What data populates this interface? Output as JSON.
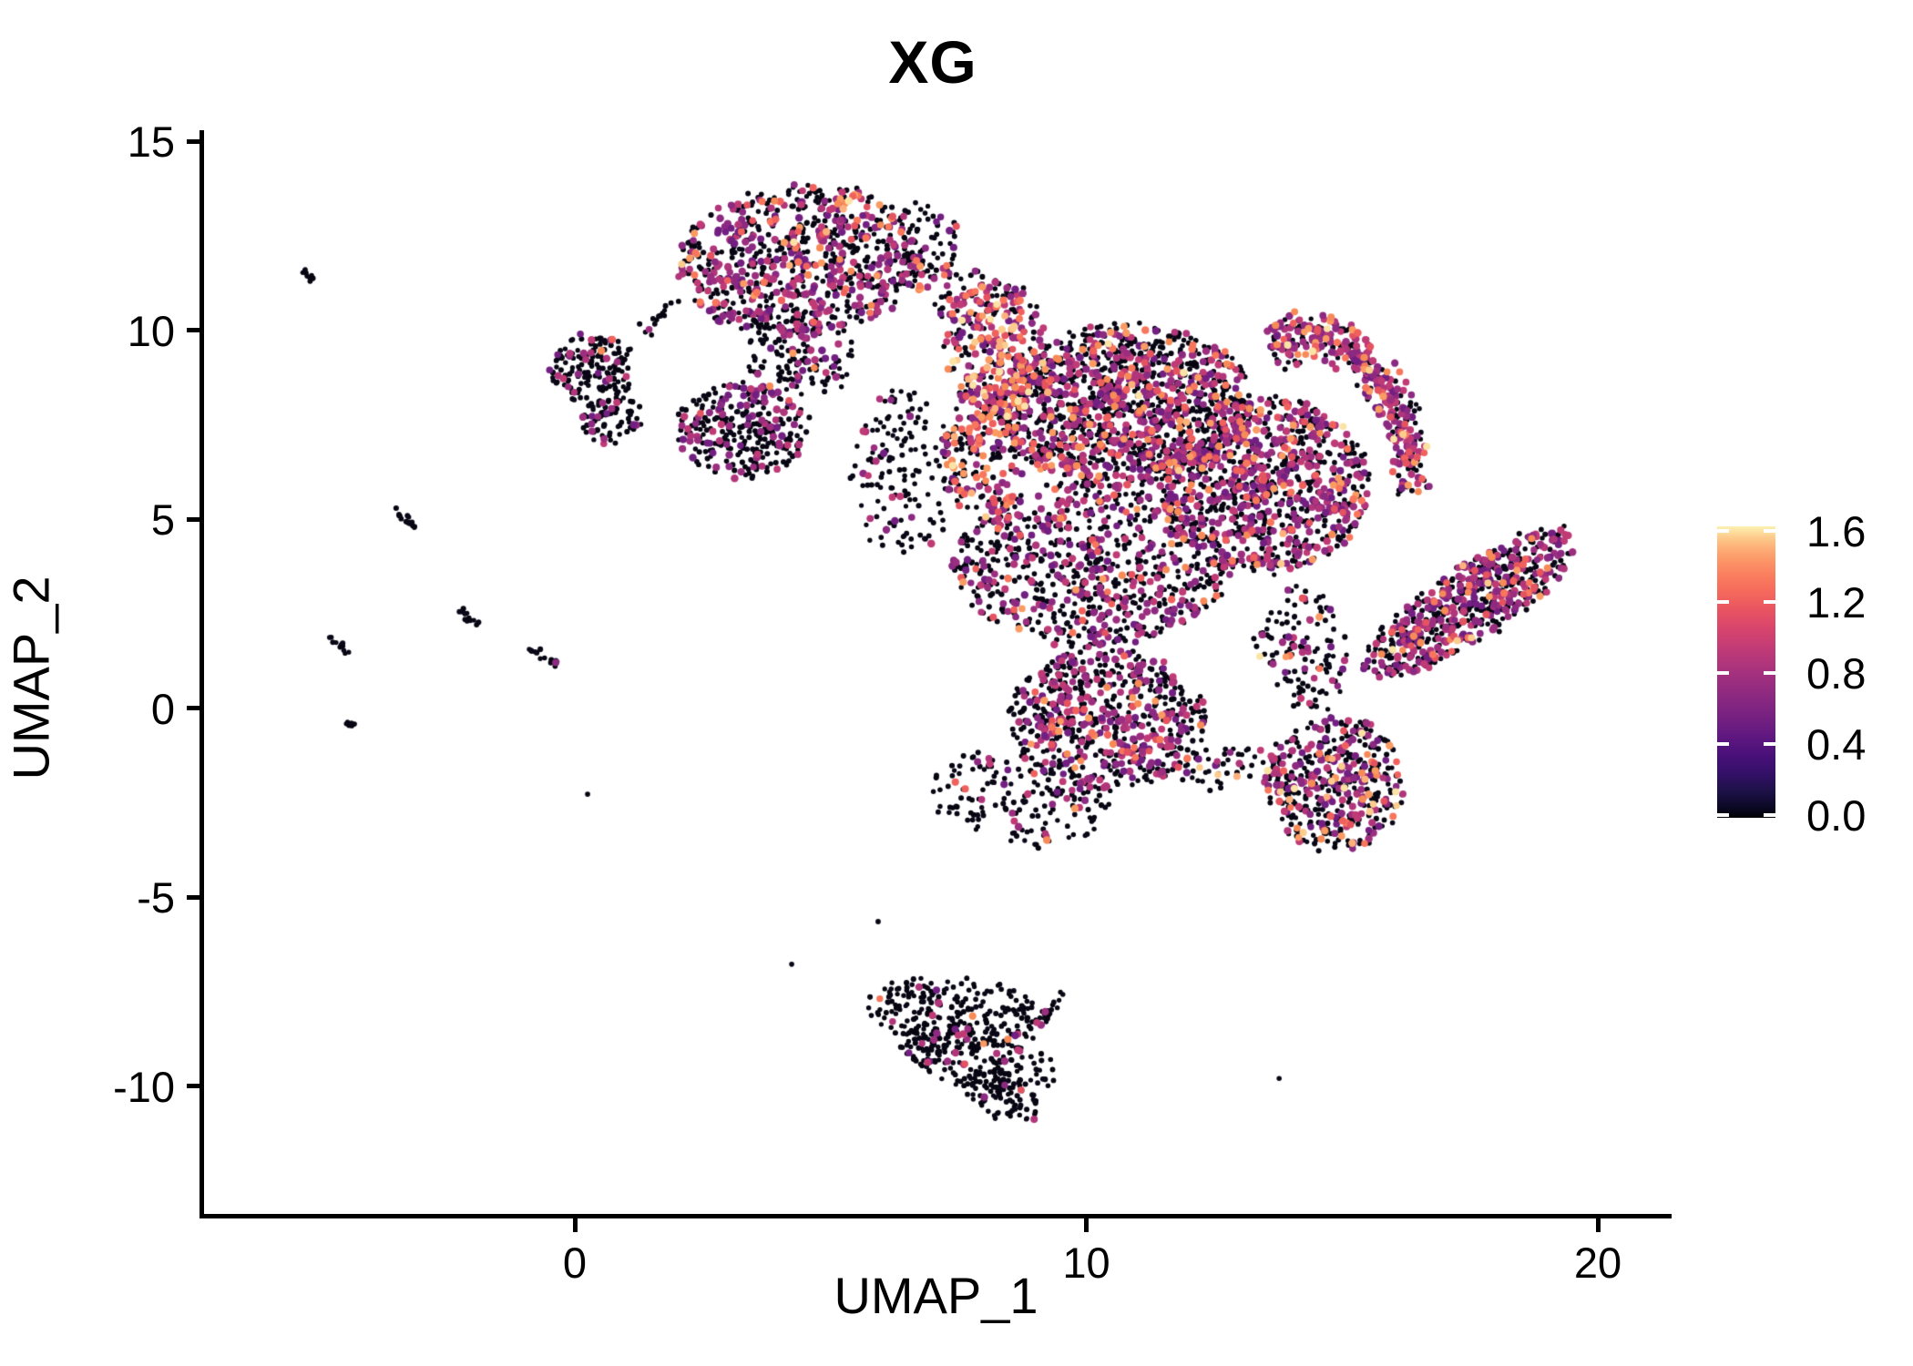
{
  "title": "XG",
  "axes": {
    "x_label": "UMAP_1",
    "y_label": "UMAP_2",
    "x_ticks": [
      0,
      10,
      20
    ],
    "y_ticks": [
      15,
      10,
      5,
      0,
      -5,
      -10
    ],
    "x_range": [
      -7.3,
      21.4
    ],
    "y_range": [
      -13.4,
      15.3
    ]
  },
  "legend": {
    "ticks": [
      {
        "value": 1.6,
        "label": "1.6"
      },
      {
        "value": 1.2,
        "label": "1.2"
      },
      {
        "value": 0.8,
        "label": "0.8"
      },
      {
        "value": 0.4,
        "label": "0.4"
      },
      {
        "value": 0.0,
        "label": "0.0"
      }
    ],
    "min": 0.0,
    "max": 1.66,
    "gradient": [
      [
        0,
        "#000004"
      ],
      [
        4,
        "#0c0927"
      ],
      [
        9,
        "#1d1147"
      ],
      [
        15,
        "#331067"
      ],
      [
        21,
        "#471078"
      ],
      [
        27,
        "#5c177f"
      ],
      [
        33,
        "#711f81"
      ],
      [
        40,
        "#872781"
      ],
      [
        47,
        "#9c2e7f"
      ],
      [
        53,
        "#b0357b"
      ],
      [
        59,
        "#c43c75"
      ],
      [
        65,
        "#d8456c"
      ],
      [
        71,
        "#e85362"
      ],
      [
        77,
        "#f4675c"
      ],
      [
        83,
        "#fa7d5e"
      ],
      [
        88,
        "#fc9467"
      ],
      [
        92,
        "#fdab74"
      ],
      [
        96,
        "#fdc98b"
      ],
      [
        100,
        "#fcf1b2"
      ]
    ]
  },
  "point_colors": {
    "black": [
      "#060510",
      "#0a0716"
    ],
    "purple": [
      "#721f81",
      "#8c2981",
      "#9c2e7f",
      "#b0357b",
      "#c03a76"
    ],
    "orange": [
      "#e4535f",
      "#f0615d",
      "#f8765c",
      "#f78b58",
      "#fa9b63"
    ],
    "cream": [
      "#fdb27d",
      "#fccc8f",
      "#fbe3a6"
    ]
  },
  "chart_data": {
    "type": "scatter",
    "title": "XG",
    "xlabel": "UMAP_1",
    "ylabel": "UMAP_2",
    "xlim": [
      -7.3,
      21.4
    ],
    "ylim": [
      -13.4,
      15.3
    ],
    "expression_scale": {
      "min": 0.0,
      "max": 1.66,
      "colormap": "magma"
    },
    "clusters": [
      {
        "id": "top-north-blob",
        "kind": "blob",
        "cx": 4.43,
        "cy": 11.85,
        "rx": 2.42,
        "ry": 1.95,
        "rot": -4,
        "n": 850,
        "mix": {
          "k": 0.6,
          "p": 0.33,
          "o": 0.062,
          "c": 0.008
        }
      },
      {
        "id": "top-north-tail",
        "kind": "blob",
        "cx": 4.4,
        "cy": 9.35,
        "rx": 1.1,
        "ry": 1.1,
        "rot": 0,
        "n": 130,
        "mix": {
          "k": 0.74,
          "p": 0.24,
          "o": 0.02,
          "c": 0
        }
      },
      {
        "id": "top-right-fringe",
        "kind": "blob",
        "cx": 6.9,
        "cy": 12.4,
        "rx": 0.62,
        "ry": 1.0,
        "rot": 0,
        "n": 45,
        "mix": {
          "k": 0.82,
          "p": 0.16,
          "o": 0.02,
          "c": 0
        }
      },
      {
        "id": "trail-a-to-b",
        "kind": "line",
        "x1": 2.03,
        "y1": 10.78,
        "x2": 1.23,
        "y2": 9.94,
        "w": 8,
        "n": 14,
        "mix": {
          "k": 0.85,
          "p": 0.15,
          "o": 0,
          "c": 0
        }
      },
      {
        "id": "left-small-blob",
        "kind": "blob",
        "cx": 0.34,
        "cy": 8.98,
        "rx": 0.82,
        "ry": 0.95,
        "rot": 0,
        "n": 165,
        "mix": {
          "k": 0.84,
          "p": 0.15,
          "o": 0.01,
          "c": 0
        }
      },
      {
        "id": "left-small-hook",
        "kind": "blob",
        "cx": 0.73,
        "cy": 7.6,
        "rx": 0.6,
        "ry": 0.55,
        "rot": -20,
        "n": 70,
        "mix": {
          "k": 0.8,
          "p": 0.17,
          "o": 0.03,
          "c": 0
        }
      },
      {
        "id": "mid-left-blob",
        "kind": "blob",
        "cx": 3.28,
        "cy": 7.36,
        "rx": 1.32,
        "ry": 1.28,
        "rot": 0,
        "n": 300,
        "mix": {
          "k": 0.72,
          "p": 0.26,
          "o": 0.02,
          "c": 0
        }
      },
      {
        "id": "bridge-sparse",
        "kind": "blob",
        "cx": 7.6,
        "cy": 10.9,
        "rx": 1.05,
        "ry": 0.85,
        "rot": 15,
        "n": 70,
        "mix": {
          "k": 0.62,
          "p": 0.24,
          "o": 0.12,
          "c": 0.02
        }
      },
      {
        "id": "orange-band-upper",
        "kind": "blob",
        "cx": 8.26,
        "cy": 9.55,
        "rx": 1.0,
        "ry": 1.85,
        "rot": -6,
        "n": 280,
        "mix": {
          "k": 0.34,
          "p": 0.32,
          "o": 0.28,
          "c": 0.06
        }
      },
      {
        "id": "orange-band-lower",
        "kind": "blob",
        "cx": 7.95,
        "cy": 6.7,
        "rx": 0.75,
        "ry": 1.7,
        "rot": -5,
        "n": 190,
        "mix": {
          "k": 0.45,
          "p": 0.3,
          "o": 0.22,
          "c": 0.03
        }
      },
      {
        "id": "central-top-core",
        "kind": "blob",
        "cx": 10.75,
        "cy": 8.0,
        "rx": 2.5,
        "ry": 2.12,
        "rot": -3,
        "n": 1300,
        "mix": {
          "k": 0.62,
          "p": 0.29,
          "o": 0.082,
          "c": 0.008
        }
      },
      {
        "id": "central-right-core",
        "kind": "blob",
        "cx": 13.5,
        "cy": 5.9,
        "rx": 2.05,
        "ry": 2.3,
        "rot": 0,
        "n": 950,
        "mix": {
          "k": 0.55,
          "p": 0.36,
          "o": 0.088,
          "c": 0.002
        }
      },
      {
        "id": "right-claw-arc",
        "kind": "arc",
        "cx": 14.23,
        "cy": 5.36,
        "rx": 2.23,
        "ry": 4.46,
        "t0": -106,
        "t1": -5,
        "thick": 0.18,
        "n": 380,
        "mix": {
          "k": 0.4,
          "p": 0.45,
          "o": 0.13,
          "c": 0.02
        }
      },
      {
        "id": "central-mid-lower",
        "kind": "blob",
        "cx": 10.1,
        "cy": 3.8,
        "rx": 2.7,
        "ry": 2.2,
        "rot": 0,
        "n": 800,
        "mix": {
          "k": 0.68,
          "p": 0.27,
          "o": 0.05,
          "c": 0
        }
      },
      {
        "id": "central-bottom-lobe",
        "kind": "blob",
        "cx": 10.4,
        "cy": -0.3,
        "rx": 1.9,
        "ry": 1.85,
        "rot": 0,
        "n": 650,
        "mix": {
          "k": 0.6,
          "p": 0.33,
          "o": 0.07,
          "c": 0
        }
      },
      {
        "id": "bottom-sparse-tail",
        "kind": "blob",
        "cx": 8.7,
        "cy": -2.4,
        "rx": 1.8,
        "ry": 1.2,
        "rot": 10,
        "n": 170,
        "mix": {
          "k": 0.86,
          "p": 0.12,
          "o": 0.02,
          "c": 0
        }
      },
      {
        "id": "left-fringe",
        "kind": "blob",
        "cx": 6.4,
        "cy": 6.2,
        "rx": 1.0,
        "ry": 2.2,
        "rot": 0,
        "n": 150,
        "mix": {
          "k": 0.86,
          "p": 0.13,
          "o": 0.01,
          "c": 0
        }
      },
      {
        "id": "claw-e-connector",
        "kind": "blob",
        "cx": 14.2,
        "cy": 1.6,
        "rx": 0.9,
        "ry": 1.7,
        "rot": -15,
        "n": 130,
        "mix": {
          "k": 0.78,
          "p": 0.16,
          "o": 0.04,
          "c": 0.02
        }
      },
      {
        "id": "mass-e-bridge",
        "kind": "blob",
        "cx": 12.8,
        "cy": -1.6,
        "rx": 1.1,
        "ry": 0.6,
        "rot": 0,
        "n": 60,
        "mix": {
          "k": 0.8,
          "p": 0.15,
          "o": 0.03,
          "c": 0.02
        }
      },
      {
        "id": "lower-right-blob",
        "kind": "blob",
        "cx": 14.85,
        "cy": -2.0,
        "rx": 1.35,
        "ry": 1.8,
        "rot": 10,
        "n": 440,
        "mix": {
          "k": 0.6,
          "p": 0.3,
          "o": 0.07,
          "c": 0.03
        }
      },
      {
        "id": "right-wing",
        "kind": "blob",
        "cx": 17.5,
        "cy": 2.8,
        "rx": 2.45,
        "ry": 0.97,
        "rot": -33,
        "n": 640,
        "mix": {
          "k": 0.58,
          "p": 0.33,
          "o": 0.082,
          "c": 0.008
        }
      },
      {
        "id": "bottom-island-top",
        "kind": "blob",
        "cx": 7.45,
        "cy": -8.1,
        "rx": 1.8,
        "ry": 0.95,
        "rot": 4,
        "n": 260,
        "mix": {
          "k": 0.92,
          "p": 0.07,
          "o": 0.01,
          "c": 0
        }
      },
      {
        "id": "bottom-island-mid",
        "kind": "blob",
        "cx": 7.9,
        "cy": -9.3,
        "rx": 1.55,
        "ry": 0.85,
        "rot": 12,
        "n": 185,
        "mix": {
          "k": 0.93,
          "p": 0.06,
          "o": 0.01,
          "c": 0
        }
      },
      {
        "id": "bottom-island-tail",
        "kind": "blob",
        "cx": 8.35,
        "cy": -10.3,
        "rx": 0.75,
        "ry": 0.62,
        "rot": 25,
        "n": 70,
        "mix": {
          "k": 0.95,
          "p": 0.05,
          "o": 0,
          "c": 0
        }
      },
      {
        "id": "bottom-island-horn",
        "kind": "line",
        "x1": 9.15,
        "y1": -8.25,
        "x2": 9.56,
        "y2": -7.53,
        "w": 6,
        "n": 12,
        "mix": {
          "k": 1,
          "p": 0,
          "o": 0,
          "c": 0
        }
      },
      {
        "id": "streak-1",
        "kind": "line",
        "x1": -5.29,
        "y1": 11.58,
        "x2": -5.09,
        "y2": 11.34,
        "w": 5,
        "n": 10,
        "mix": {
          "k": 1,
          "p": 0,
          "o": 0,
          "c": 0
        }
      },
      {
        "id": "streak-2",
        "kind": "line",
        "x1": -3.53,
        "y1": 5.29,
        "x2": -3.1,
        "y2": 4.76,
        "w": 6,
        "n": 16,
        "mix": {
          "k": 1,
          "p": 0,
          "o": 0,
          "c": 0
        }
      },
      {
        "id": "streak-3",
        "kind": "line",
        "x1": -4.79,
        "y1": 1.92,
        "x2": -4.42,
        "y2": 1.46,
        "w": 6,
        "n": 13,
        "mix": {
          "k": 1,
          "p": 0,
          "o": 0,
          "c": 0
        }
      },
      {
        "id": "streak-4",
        "kind": "line",
        "x1": -2.28,
        "y1": 2.59,
        "x2": -1.89,
        "y2": 2.11,
        "w": 6,
        "n": 13,
        "mix": {
          "k": 1,
          "p": 0,
          "o": 0,
          "c": 0
        }
      },
      {
        "id": "streak-5",
        "kind": "line",
        "x1": -0.91,
        "y1": 1.67,
        "x2": -0.32,
        "y2": 1.12,
        "w": 6,
        "n": 15,
        "mix": {
          "k": 0.93,
          "p": 0.07,
          "o": 0,
          "c": 0
        }
      },
      {
        "id": "streak-6",
        "kind": "line",
        "x1": -4.56,
        "y1": -0.23,
        "x2": -4.35,
        "y2": -0.49,
        "w": 5,
        "n": 8,
        "mix": {
          "k": 1,
          "p": 0,
          "o": 0,
          "c": 0
        }
      }
    ],
    "singles": [
      [
        0.25,
        -2.28
      ],
      [
        1.5,
        9.87
      ],
      [
        4.24,
        -6.78
      ],
      [
        13.77,
        -9.8
      ],
      [
        5.93,
        -5.65
      ],
      [
        6.55,
        11.5
      ]
    ]
  }
}
